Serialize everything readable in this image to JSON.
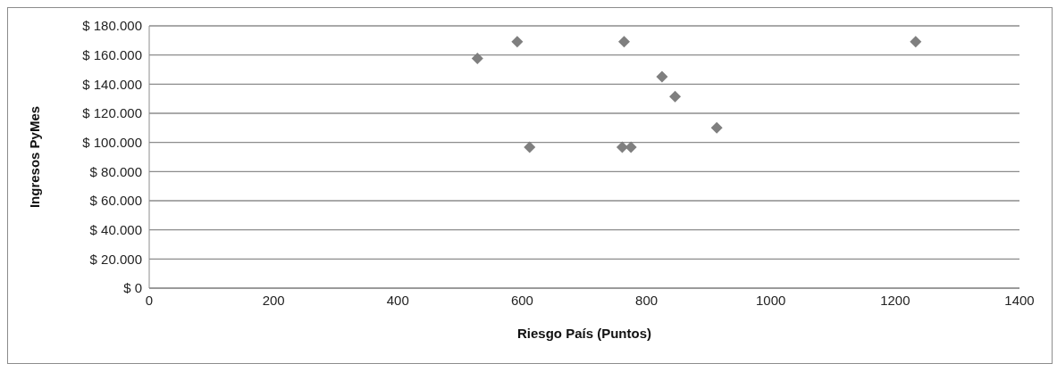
{
  "chart_data": {
    "type": "scatter",
    "xlabel": "Riesgo País (Puntos)",
    "ylabel": "Ingresos PyMes",
    "x": [
      528,
      592,
      764,
      1233,
      825,
      846,
      913,
      612,
      761,
      775
    ],
    "values": [
      157600,
      169200,
      169200,
      169200,
      145100,
      131500,
      110000,
      96700,
      96700,
      96700
    ],
    "color": "#7f7f7f",
    "marker": "diamond",
    "grid": "y",
    "legend": false,
    "xlim": [
      0,
      1400
    ],
    "xticks": [
      0,
      200,
      400,
      600,
      800,
      1000,
      1200,
      1400
    ],
    "ylim": [
      0,
      180000
    ],
    "yticks": [
      {
        "value": 0,
        "label": "$ 0"
      },
      {
        "value": 20000,
        "label": "$ 20.000"
      },
      {
        "value": 40000,
        "label": "$ 40.000"
      },
      {
        "value": 60000,
        "label": "$ 60.000"
      },
      {
        "value": 80000,
        "label": "$ 80.000"
      },
      {
        "value": 100000,
        "label": "$ 100.000"
      },
      {
        "value": 120000,
        "label": "$ 120.000"
      },
      {
        "value": 140000,
        "label": "$ 140.000"
      },
      {
        "value": 160000,
        "label": "$ 160.000"
      },
      {
        "value": 180000,
        "label": "$ 180.000"
      }
    ]
  }
}
